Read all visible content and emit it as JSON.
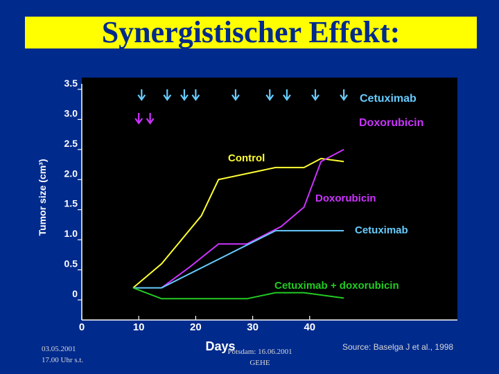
{
  "title": "Synergistischer Effekt:",
  "footer": {
    "date": "03.05.2001",
    "time": "17.00 Uhr s.t.",
    "event_line1": "Potsdam: 16.06.2001",
    "event_line2": "GEHE",
    "source": "Source: Baselga J et al., 1998"
  },
  "chart_data": {
    "type": "line",
    "title": "",
    "xlabel": "Days",
    "ylabel": "Tumor size (cm³)",
    "xlim": [
      0,
      50
    ],
    "ylim": [
      0,
      3.5
    ],
    "xticks": [
      0,
      10,
      20,
      30,
      40
    ],
    "xtick_labels": [
      "0",
      "10",
      "20",
      "30",
      "40"
    ],
    "yticks": [
      0,
      0.5,
      1.0,
      1.5,
      2.0,
      2.5,
      3.0,
      3.5
    ],
    "ytick_labels": [
      "0",
      "0.5",
      "1.0",
      "1.5",
      "2.0",
      "2.5",
      "3.0",
      "3.5"
    ],
    "grid": false,
    "series": [
      {
        "name": "Control",
        "color": "#ffff33",
        "x": [
          9,
          14,
          21,
          24,
          34,
          39,
          42,
          46
        ],
        "y": [
          0.2,
          0.6,
          1.4,
          2.0,
          2.2,
          2.2,
          2.35,
          2.3
        ]
      },
      {
        "name": "Doxorubicin",
        "color": "#cc33ff",
        "x": [
          14,
          19,
          24,
          29,
          35,
          39,
          42,
          46
        ],
        "y": [
          0.2,
          0.55,
          0.93,
          0.93,
          1.22,
          1.54,
          2.3,
          2.5
        ]
      },
      {
        "name": "Cetuximab",
        "color": "#66ccff",
        "x": [
          9,
          14,
          34,
          39,
          42,
          46
        ],
        "y": [
          0.2,
          0.2,
          1.15,
          1.15,
          1.15,
          1.15
        ]
      },
      {
        "name": "Cetuximab + doxorubicin",
        "color": "#22cc22",
        "x": [
          9,
          14,
          29,
          34,
          39,
          46
        ],
        "y": [
          0.2,
          0.02,
          0.02,
          0.12,
          0.12,
          0.03
        ]
      }
    ],
    "cetuximab_dose_days": [
      10.5,
      15,
      18,
      20,
      27,
      33,
      36,
      41,
      46
    ],
    "doxorubicin_dose_days": [
      10,
      12
    ],
    "annotations": [
      {
        "text": "Cetuximab",
        "color": "#66ccff"
      },
      {
        "text": "Doxorubicin",
        "color": "#cc33ff"
      },
      {
        "text": "Control",
        "color": "#ffff33"
      },
      {
        "text": "Doxorubicin",
        "color": "#cc33ff"
      },
      {
        "text": "Cetuximab",
        "color": "#66ccff"
      },
      {
        "text": "Cetuximab + doxorubicin",
        "color": "#22cc22"
      }
    ],
    "legend_items": [
      {
        "text": "Cetuximab",
        "color": "#66ccff",
        "marker": "arrow"
      },
      {
        "text": "Doxorubicin",
        "color": "#cc33ff",
        "marker": "arrow"
      }
    ]
  }
}
